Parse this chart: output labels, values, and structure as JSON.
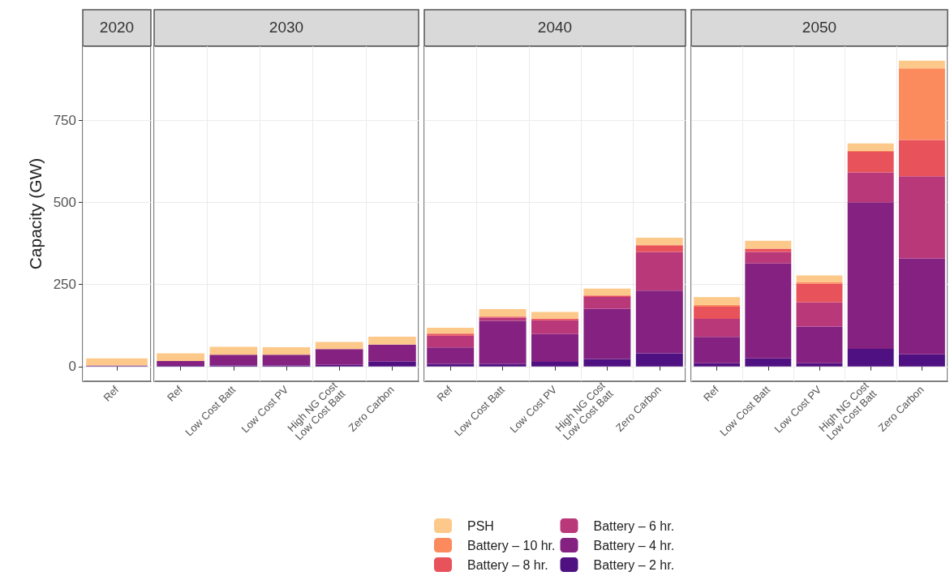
{
  "chart_data": [
    {
      "type": "bar",
      "title": "2020",
      "ylabel": "Capacity (GW)",
      "categories": [
        "Ref"
      ],
      "stacked": true,
      "ylim": [
        -45,
        975
      ],
      "yticks": [
        0,
        250,
        500,
        750
      ],
      "grid": true,
      "series": [
        {
          "color": "#4f1181",
          "values": [
            1
          ]
        },
        {
          "color": "#842181",
          "values": [
            2
          ]
        },
        {
          "color": "#b8387a",
          "values": [
            0
          ]
        },
        {
          "color": "#e8525b",
          "values": [
            0
          ]
        },
        {
          "color": "#fb8a5c",
          "values": [
            0
          ]
        },
        {
          "color": "#fdc98a",
          "values": [
            22
          ]
        }
      ]
    },
    {
      "type": "bar",
      "title": "2030",
      "categories": [
        "Ref",
        "Low Cost Batt",
        "Low Cost PV",
        "High NG Cost\nLow Cost Batt",
        "Zero Carbon"
      ],
      "stacked": true,
      "ylim": [
        -45,
        975
      ],
      "yticks": [
        0,
        250,
        500,
        750
      ],
      "grid": true,
      "tick_labels": "x",
      "series": [
        {
          "color": "#4f1181",
          "values": [
            2,
            3,
            3,
            5,
            15
          ]
        },
        {
          "color": "#842181",
          "values": [
            15,
            33,
            33,
            48,
            52
          ]
        },
        {
          "color": "#b8387a",
          "values": [
            0,
            0,
            0,
            0,
            0
          ]
        },
        {
          "color": "#e8525b",
          "values": [
            0,
            0,
            0,
            0,
            0
          ]
        },
        {
          "color": "#fb8a5c",
          "values": [
            0,
            0,
            0,
            0,
            0
          ]
        },
        {
          "color": "#fdc98a",
          "values": [
            23,
            24,
            23,
            22,
            24
          ]
        }
      ]
    },
    {
      "type": "bar",
      "title": "2040",
      "categories": [
        "Ref",
        "Low Cost Batt",
        "Low Cost PV",
        "High NG Cost\nLow Cost Batt",
        "Zero Carbon"
      ],
      "stacked": true,
      "ylim": [
        -45,
        975
      ],
      "yticks": [
        0,
        250,
        500,
        750
      ],
      "grid": true,
      "legend": "bottom",
      "tick_labels": "x",
      "series": [
        {
          "name": "Battery – 2 hr.",
          "color": "#4f1181",
          "values": [
            8,
            8,
            14,
            23,
            40
          ]
        },
        {
          "name": "Battery – 4 hr.",
          "color": "#842181",
          "values": [
            50,
            131,
            85,
            153,
            191
          ]
        },
        {
          "name": "Battery – 6 hr.",
          "color": "#b8387a",
          "values": [
            36,
            10,
            42,
            36,
            118
          ]
        },
        {
          "name": "Battery – 8 hr.",
          "color": "#e8525b",
          "values": [
            6,
            3,
            5,
            4,
            20
          ]
        },
        {
          "name": "Battery – 10 hr.",
          "color": "#fb8a5c",
          "values": [
            0,
            0,
            0,
            0,
            0
          ]
        },
        {
          "name": "PSH",
          "color": "#fdc98a",
          "values": [
            18,
            23,
            20,
            21,
            23
          ]
        }
      ]
    },
    {
      "type": "bar",
      "title": "2050",
      "categories": [
        "Ref",
        "Low Cost Batt",
        "Low Cost PV",
        "High NG Cost\nLow Cost Batt",
        "Zero Carbon"
      ],
      "stacked": true,
      "ylim": [
        -45,
        975
      ],
      "yticks": [
        0,
        250,
        500,
        750
      ],
      "grid": true,
      "tick_labels": "x",
      "series": [
        {
          "color": "#4f1181",
          "values": [
            10,
            25,
            10,
            54,
            37
          ]
        },
        {
          "color": "#842181",
          "values": [
            80,
            289,
            112,
            446,
            292
          ]
        },
        {
          "color": "#b8387a",
          "values": [
            55,
            35,
            74,
            91,
            250
          ]
        },
        {
          "color": "#e8525b",
          "values": [
            37,
            10,
            56,
            63,
            111
          ]
        },
        {
          "color": "#fb8a5c",
          "values": [
            6,
            0,
            5,
            3,
            218
          ]
        },
        {
          "color": "#fdc98a",
          "values": [
            23,
            24,
            20,
            22,
            23
          ]
        }
      ]
    }
  ]
}
